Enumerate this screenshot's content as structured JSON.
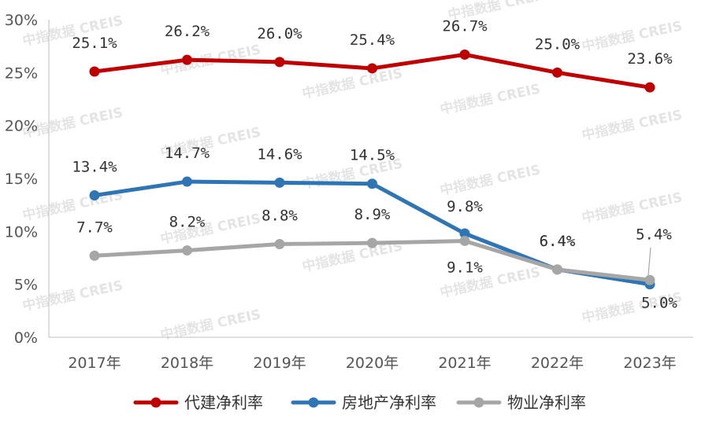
{
  "watermark": "中指数据 CREIS",
  "chart_data": {
    "type": "line",
    "categories": [
      "2017年",
      "2018年",
      "2019年",
      "2020年",
      "2021年",
      "2022年",
      "2023年"
    ],
    "y_ticks": [
      "0%",
      "5%",
      "10%",
      "15%",
      "20%",
      "25%",
      "30%"
    ],
    "ylim": [
      0,
      30
    ],
    "unit": "%",
    "grid": false,
    "legend_position": "bottom",
    "series": [
      {
        "name": "代建净利率",
        "color": "#c00000",
        "values": [
          25.1,
          26.2,
          26.0,
          25.4,
          26.7,
          25.0,
          23.6
        ],
        "labels": [
          "25.1%",
          "26.2%",
          "26.0%",
          "25.4%",
          "26.7%",
          "25.0%",
          "23.6%"
        ]
      },
      {
        "name": "房地产净利率",
        "color": "#2e75b6",
        "values": [
          13.4,
          14.7,
          14.6,
          14.5,
          9.8,
          6.4,
          5.0
        ],
        "labels": [
          "13.4%",
          "14.7%",
          "14.6%",
          "14.5%",
          "9.8%",
          "6.4%",
          "5.0%"
        ]
      },
      {
        "name": "物业净利率",
        "color": "#a6a6a6",
        "values": [
          7.7,
          8.2,
          8.8,
          8.9,
          9.1,
          6.4,
          5.4
        ],
        "labels": [
          "7.7%",
          "8.2%",
          "8.8%",
          "8.9%",
          "9.1%",
          "6.4%",
          "5.4%"
        ]
      }
    ]
  }
}
